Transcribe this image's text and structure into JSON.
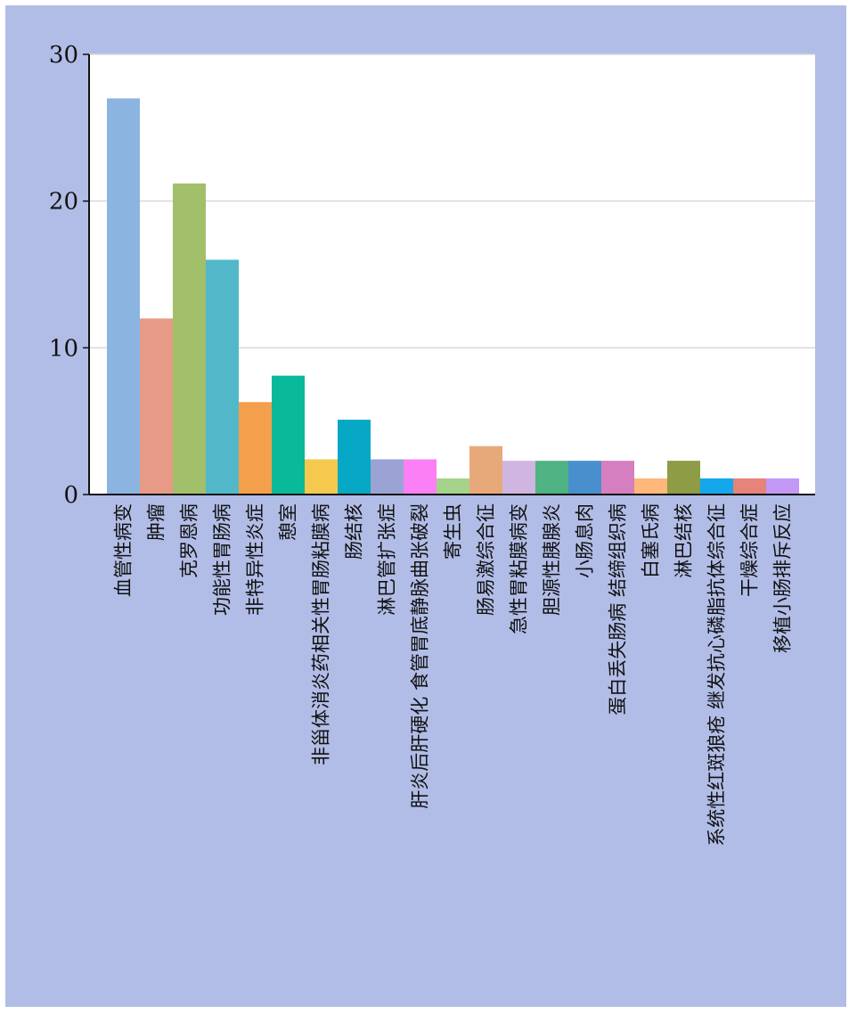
{
  "chart_data": {
    "type": "bar",
    "categories": [
      "血管性病变",
      "肿瘤",
      "克罗恩病",
      "功能性胃肠病",
      "非特异性炎症",
      "憩室",
      "非甾体消炎药相关性胃肠粘膜病",
      "肠结核",
      "淋巴管扩张症",
      "肝炎后肝硬化 食管胃底静脉曲张破裂",
      "寄生虫",
      "肠易激综合征",
      "急性胃粘膜病变",
      "胆源性胰腺炎",
      "小肠息肉",
      "蛋白丢失肠病 结缔组织病",
      "白塞氏病",
      "淋巴结核",
      "系统性红斑狼疮 继发抗心磷脂抗体综合征",
      "干燥综合症",
      "移植小肠排斥反应"
    ],
    "values": [
      27,
      12,
      21.2,
      16,
      6.3,
      8.1,
      2.4,
      5.1,
      2.4,
      2.4,
      1.1,
      3.3,
      2.3,
      2.3,
      2.3,
      2.3,
      1.1,
      2.3,
      1.1,
      1.1,
      1.1
    ],
    "colors": [
      "#8bb4e0",
      "#e79a85",
      "#a2bf6a",
      "#52b8c9",
      "#f49f4b",
      "#0ab89a",
      "#f4c94d",
      "#07a8c5",
      "#9aa3d3",
      "#fb80f6",
      "#a6d38a",
      "#e7a97a",
      "#d0b5e1",
      "#4fb383",
      "#4a8fcd",
      "#d57ec0",
      "#ffb77a",
      "#8e9c45",
      "#14a7eb",
      "#e6837a",
      "#c297f5"
    ],
    "ylim": [
      0,
      30
    ],
    "yticks": [
      0,
      10,
      20,
      30
    ],
    "grid": true,
    "title": "",
    "xlabel": "",
    "ylabel": ""
  }
}
